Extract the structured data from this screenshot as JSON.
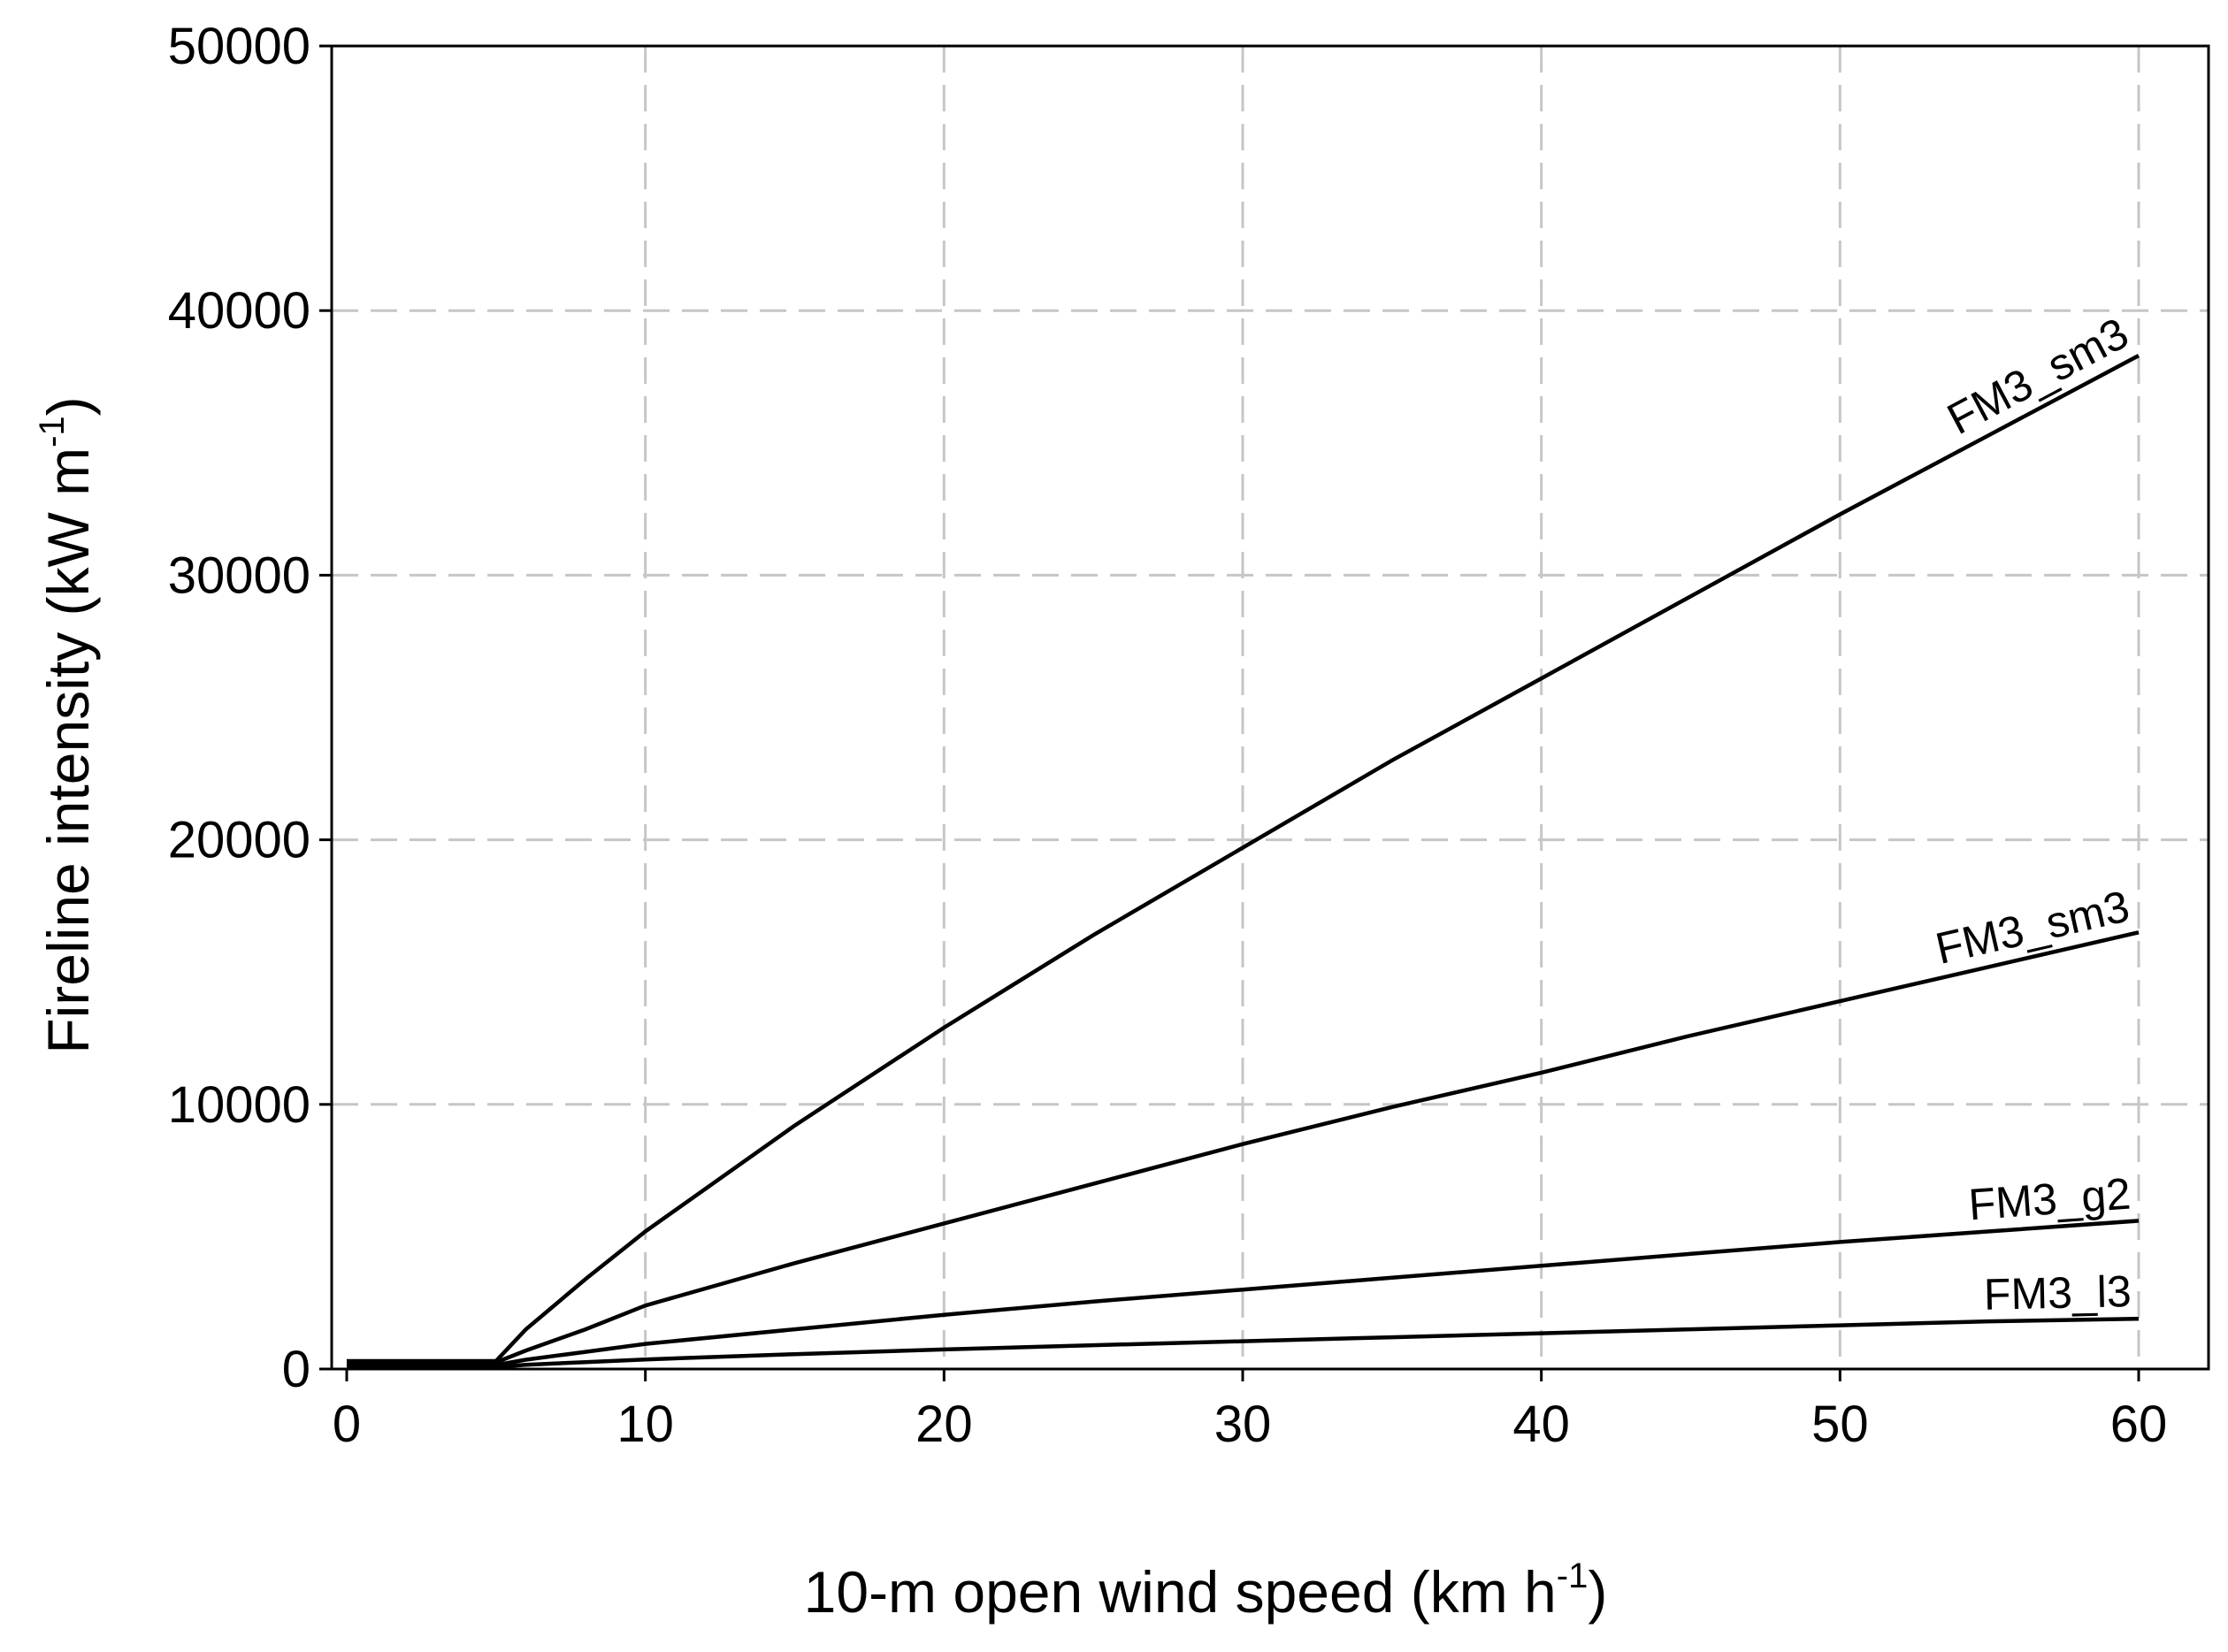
{
  "chart_data": {
    "type": "line",
    "xlabel": "10-m open wind speed (km h",
    "xlabel_sup": "-1",
    "xlabel_end": ")",
    "ylabel": "Fireline intensity (kW m",
    "ylabel_sup": "-1",
    "ylabel_end": ")",
    "xlim": [
      0,
      60
    ],
    "ylim": [
      0,
      50000
    ],
    "xticks": [
      0,
      10,
      20,
      30,
      40,
      50,
      60
    ],
    "yticks": [
      0,
      10000,
      20000,
      30000,
      40000,
      50000
    ],
    "grid": true,
    "series": [
      {
        "name": "FM3_sm3",
        "x": [
          0,
          5,
          6,
          8,
          10,
          15,
          20,
          25,
          30,
          35,
          40,
          45,
          50,
          55,
          60
        ],
        "y": [
          300,
          300,
          1500,
          3400,
          5200,
          9200,
          12900,
          16400,
          19700,
          23000,
          26100,
          29200,
          32300,
          35300,
          38300
        ]
      },
      {
        "name": "FM3_sm3",
        "x": [
          0,
          5,
          6,
          8,
          10,
          15,
          20,
          25,
          30,
          35,
          40,
          45,
          50,
          55,
          60
        ],
        "y": [
          250,
          250,
          700,
          1500,
          2400,
          4000,
          5500,
          7000,
          8500,
          9900,
          11200,
          12600,
          13900,
          15200,
          16500
        ]
      },
      {
        "name": "FM3_g2",
        "x": [
          0,
          5,
          6,
          8,
          10,
          15,
          20,
          25,
          30,
          35,
          40,
          45,
          50,
          55,
          60
        ],
        "y": [
          150,
          150,
          350,
          650,
          950,
          1500,
          2050,
          2550,
          3000,
          3450,
          3900,
          4350,
          4800,
          5200,
          5600
        ]
      },
      {
        "name": "FM3_l3",
        "x": [
          0,
          5,
          6,
          8,
          10,
          15,
          20,
          25,
          30,
          35,
          40,
          45,
          50,
          55,
          60
        ],
        "y": [
          80,
          80,
          160,
          260,
          360,
          560,
          740,
          900,
          1050,
          1200,
          1350,
          1500,
          1650,
          1800,
          1900
        ]
      }
    ]
  }
}
